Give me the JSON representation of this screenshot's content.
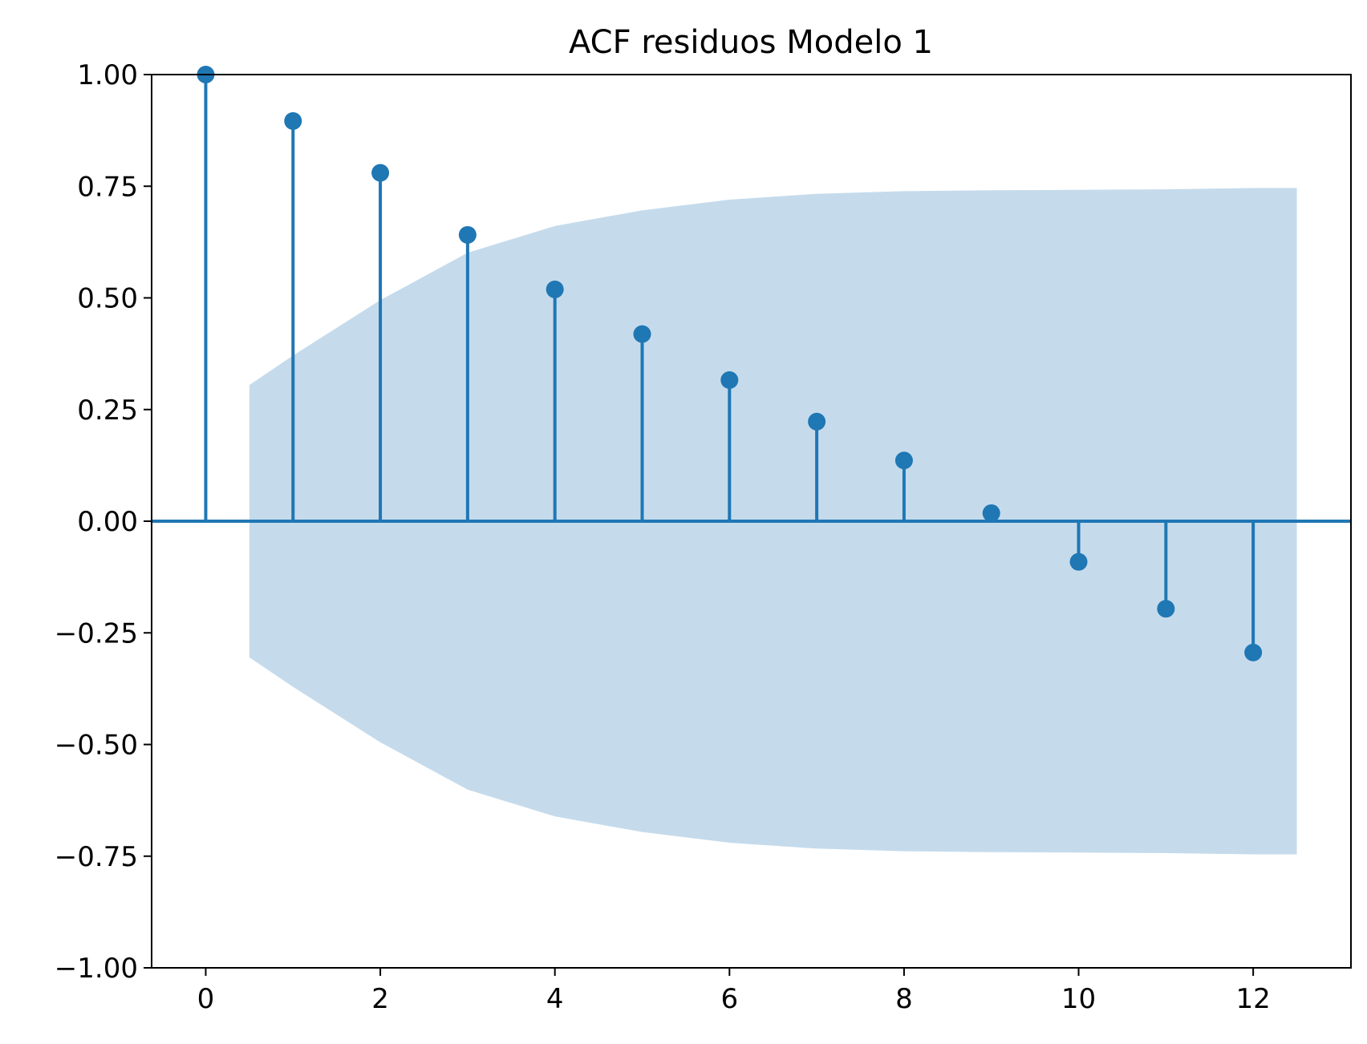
{
  "chart_data": {
    "type": "stem",
    "title": "ACF residuos Modelo 1",
    "xlabel": "",
    "ylabel": "",
    "xlim": [
      -0.62,
      13.12
    ],
    "ylim": [
      -1.0,
      1.0
    ],
    "x_ticks": [
      0,
      2,
      4,
      6,
      8,
      10,
      12
    ],
    "y_ticks": [
      1.0,
      0.75,
      0.5,
      0.25,
      0.0,
      -0.25,
      -0.5,
      -0.75,
      -1.0
    ],
    "y_tick_labels": [
      "1.00",
      "0.75",
      "0.50",
      "0.25",
      "0.00",
      "−0.25",
      "−0.50",
      "−0.75",
      "−1.00"
    ],
    "grid": false,
    "lags": [
      0,
      1,
      2,
      3,
      4,
      5,
      6,
      7,
      8,
      9,
      10,
      11,
      12
    ],
    "acf": [
      1.0,
      0.896,
      0.78,
      0.641,
      0.519,
      0.419,
      0.316,
      0.223,
      0.136,
      0.018,
      -0.091,
      -0.196,
      -0.294
    ],
    "confidence_band": {
      "x": [
        0.5,
        1,
        2,
        3,
        4,
        5,
        6,
        7,
        8,
        9,
        10,
        11,
        12,
        12.5
      ],
      "upper": [
        0.305,
        0.371,
        0.495,
        0.601,
        0.661,
        0.696,
        0.72,
        0.733,
        0.739,
        0.741,
        0.742,
        0.743,
        0.746,
        0.746
      ],
      "lower": [
        -0.305,
        -0.371,
        -0.495,
        -0.601,
        -0.661,
        -0.696,
        -0.72,
        -0.733,
        -0.739,
        -0.741,
        -0.742,
        -0.743,
        -0.746,
        -0.746
      ]
    },
    "colors": {
      "stem": "#1f77b4",
      "band": "#c5dbec",
      "axis": "#000000"
    }
  }
}
